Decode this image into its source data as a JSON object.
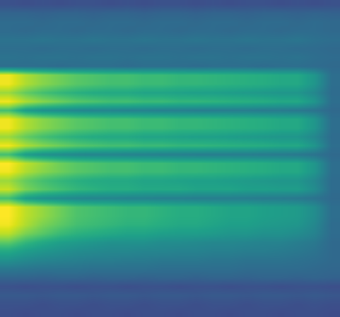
{
  "chart_data": {
    "type": "heatmap",
    "color": "Viridis",
    "tick_labels": false,
    "grid": false,
    "xlim": [
      -0.5,
      19.5
    ],
    "ylim": [
      35.5,
      -0.5
    ],
    "zlim": [
      0,
      1
    ],
    "cells": [
      [
        0.25,
        0.24,
        0.25,
        0.24,
        0.25,
        0.25,
        0.24,
        0.25,
        0.24,
        0.25,
        0.25,
        0.24,
        0.25,
        0.24,
        0.25,
        0.25,
        0.24,
        0.25,
        0.24,
        0.25
      ],
      [
        0.32,
        0.32,
        0.31,
        0.32,
        0.32,
        0.31,
        0.32,
        0.32,
        0.31,
        0.32,
        0.32,
        0.31,
        0.32,
        0.32,
        0.31,
        0.32,
        0.32,
        0.31,
        0.32,
        0.31
      ],
      [
        0.35,
        0.35,
        0.34,
        0.35,
        0.35,
        0.34,
        0.35,
        0.35,
        0.34,
        0.35,
        0.35,
        0.34,
        0.35,
        0.35,
        0.34,
        0.35,
        0.35,
        0.34,
        0.35,
        0.34
      ],
      [
        0.35,
        0.34,
        0.35,
        0.35,
        0.34,
        0.35,
        0.35,
        0.34,
        0.35,
        0.35,
        0.34,
        0.35,
        0.35,
        0.34,
        0.35,
        0.35,
        0.34,
        0.35,
        0.35,
        0.34
      ],
      [
        0.38,
        0.38,
        0.39,
        0.38,
        0.38,
        0.39,
        0.38,
        0.38,
        0.39,
        0.38,
        0.38,
        0.39,
        0.38,
        0.38,
        0.39,
        0.38,
        0.38,
        0.39,
        0.37,
        0.36
      ],
      [
        0.36,
        0.36,
        0.35,
        0.36,
        0.36,
        0.35,
        0.36,
        0.36,
        0.35,
        0.36,
        0.36,
        0.35,
        0.36,
        0.36,
        0.35,
        0.36,
        0.36,
        0.35,
        0.35,
        0.34
      ],
      [
        0.38,
        0.37,
        0.38,
        0.38,
        0.37,
        0.38,
        0.38,
        0.37,
        0.38,
        0.38,
        0.37,
        0.38,
        0.38,
        0.37,
        0.38,
        0.38,
        0.37,
        0.38,
        0.36,
        0.35
      ],
      [
        0.36,
        0.36,
        0.36,
        0.35,
        0.36,
        0.36,
        0.36,
        0.35,
        0.36,
        0.36,
        0.36,
        0.35,
        0.36,
        0.36,
        0.36,
        0.35,
        0.36,
        0.36,
        0.35,
        0.34
      ],
      [
        0.98,
        0.88,
        0.82,
        0.78,
        0.74,
        0.72,
        0.7,
        0.7,
        0.68,
        0.68,
        0.66,
        0.66,
        0.65,
        0.64,
        0.63,
        0.62,
        0.6,
        0.6,
        0.52,
        0.36
      ],
      [
        0.98,
        0.88,
        0.82,
        0.78,
        0.74,
        0.72,
        0.7,
        0.7,
        0.68,
        0.68,
        0.66,
        0.66,
        0.65,
        0.64,
        0.63,
        0.62,
        0.6,
        0.6,
        0.52,
        0.36
      ],
      [
        0.85,
        0.76,
        0.7,
        0.66,
        0.63,
        0.61,
        0.6,
        0.6,
        0.58,
        0.58,
        0.57,
        0.56,
        0.56,
        0.55,
        0.54,
        0.53,
        0.52,
        0.52,
        0.46,
        0.35
      ],
      [
        0.98,
        0.88,
        0.82,
        0.78,
        0.74,
        0.72,
        0.7,
        0.7,
        0.68,
        0.68,
        0.66,
        0.66,
        0.65,
        0.64,
        0.63,
        0.62,
        0.6,
        0.6,
        0.52,
        0.36
      ],
      [
        0.7,
        0.55,
        0.5,
        0.48,
        0.46,
        0.45,
        0.45,
        0.44,
        0.44,
        0.43,
        0.43,
        0.42,
        0.42,
        0.42,
        0.42,
        0.41,
        0.41,
        0.4,
        0.38,
        0.34
      ],
      [
        0.98,
        0.88,
        0.82,
        0.78,
        0.74,
        0.72,
        0.7,
        0.7,
        0.68,
        0.68,
        0.66,
        0.66,
        0.65,
        0.64,
        0.63,
        0.62,
        0.6,
        0.6,
        0.52,
        0.36
      ],
      [
        0.98,
        0.88,
        0.82,
        0.78,
        0.74,
        0.72,
        0.7,
        0.7,
        0.68,
        0.68,
        0.66,
        0.66,
        0.65,
        0.64,
        0.63,
        0.62,
        0.6,
        0.6,
        0.52,
        0.36
      ],
      [
        0.85,
        0.76,
        0.7,
        0.66,
        0.63,
        0.61,
        0.6,
        0.6,
        0.58,
        0.58,
        0.57,
        0.56,
        0.56,
        0.55,
        0.54,
        0.53,
        0.52,
        0.52,
        0.46,
        0.35
      ],
      [
        0.98,
        0.88,
        0.82,
        0.78,
        0.74,
        0.72,
        0.7,
        0.7,
        0.68,
        0.68,
        0.66,
        0.66,
        0.65,
        0.64,
        0.63,
        0.62,
        0.6,
        0.6,
        0.52,
        0.36
      ],
      [
        0.7,
        0.55,
        0.5,
        0.48,
        0.46,
        0.45,
        0.45,
        0.44,
        0.44,
        0.43,
        0.43,
        0.42,
        0.42,
        0.42,
        0.42,
        0.41,
        0.41,
        0.4,
        0.38,
        0.34
      ],
      [
        1.0,
        0.9,
        0.84,
        0.78,
        0.74,
        0.72,
        0.7,
        0.7,
        0.68,
        0.68,
        0.66,
        0.66,
        0.65,
        0.64,
        0.63,
        0.62,
        0.6,
        0.6,
        0.52,
        0.36
      ],
      [
        0.98,
        0.88,
        0.82,
        0.78,
        0.74,
        0.72,
        0.7,
        0.7,
        0.68,
        0.68,
        0.66,
        0.66,
        0.65,
        0.64,
        0.63,
        0.62,
        0.6,
        0.6,
        0.52,
        0.36
      ],
      [
        0.85,
        0.76,
        0.7,
        0.66,
        0.63,
        0.61,
        0.6,
        0.6,
        0.58,
        0.58,
        0.57,
        0.56,
        0.56,
        0.55,
        0.54,
        0.53,
        0.52,
        0.52,
        0.46,
        0.35
      ],
      [
        0.92,
        0.8,
        0.74,
        0.7,
        0.66,
        0.64,
        0.62,
        0.62,
        0.6,
        0.6,
        0.6,
        0.58,
        0.58,
        0.58,
        0.56,
        0.56,
        0.55,
        0.55,
        0.48,
        0.35
      ],
      [
        0.7,
        0.55,
        0.5,
        0.48,
        0.46,
        0.45,
        0.45,
        0.44,
        0.44,
        0.43,
        0.43,
        0.42,
        0.42,
        0.42,
        0.42,
        0.41,
        0.41,
        0.4,
        0.38,
        0.34
      ],
      [
        1.0,
        0.9,
        0.84,
        0.78,
        0.72,
        0.7,
        0.68,
        0.66,
        0.66,
        0.64,
        0.62,
        0.62,
        0.6,
        0.58,
        0.58,
        0.56,
        0.55,
        0.54,
        0.48,
        0.36
      ],
      [
        1.0,
        0.9,
        0.84,
        0.78,
        0.72,
        0.7,
        0.68,
        0.66,
        0.66,
        0.64,
        0.62,
        0.62,
        0.6,
        0.58,
        0.58,
        0.56,
        0.55,
        0.54,
        0.48,
        0.36
      ],
      [
        0.98,
        0.88,
        0.8,
        0.75,
        0.7,
        0.68,
        0.66,
        0.64,
        0.64,
        0.62,
        0.6,
        0.6,
        0.58,
        0.56,
        0.56,
        0.54,
        0.53,
        0.52,
        0.46,
        0.35
      ],
      [
        0.9,
        0.8,
        0.74,
        0.68,
        0.64,
        0.62,
        0.6,
        0.58,
        0.58,
        0.56,
        0.55,
        0.55,
        0.54,
        0.52,
        0.52,
        0.5,
        0.5,
        0.48,
        0.44,
        0.35
      ],
      [
        0.75,
        0.66,
        0.6,
        0.56,
        0.54,
        0.52,
        0.5,
        0.5,
        0.5,
        0.48,
        0.48,
        0.47,
        0.46,
        0.46,
        0.45,
        0.44,
        0.44,
        0.42,
        0.4,
        0.34
      ],
      [
        0.6,
        0.55,
        0.52,
        0.5,
        0.48,
        0.47,
        0.46,
        0.46,
        0.45,
        0.45,
        0.44,
        0.44,
        0.43,
        0.43,
        0.42,
        0.42,
        0.41,
        0.4,
        0.38,
        0.34
      ],
      [
        0.5,
        0.47,
        0.45,
        0.44,
        0.43,
        0.42,
        0.42,
        0.41,
        0.41,
        0.4,
        0.4,
        0.4,
        0.39,
        0.39,
        0.38,
        0.38,
        0.38,
        0.37,
        0.36,
        0.34
      ],
      [
        0.4,
        0.39,
        0.38,
        0.38,
        0.38,
        0.37,
        0.37,
        0.37,
        0.37,
        0.36,
        0.36,
        0.36,
        0.36,
        0.36,
        0.35,
        0.35,
        0.35,
        0.35,
        0.34,
        0.33
      ],
      [
        0.32,
        0.32,
        0.31,
        0.32,
        0.32,
        0.31,
        0.32,
        0.32,
        0.31,
        0.32,
        0.32,
        0.31,
        0.32,
        0.32,
        0.31,
        0.32,
        0.32,
        0.31,
        0.32,
        0.31
      ],
      [
        0.25,
        0.24,
        0.25,
        0.25,
        0.24,
        0.25,
        0.25,
        0.24,
        0.25,
        0.25,
        0.24,
        0.25,
        0.25,
        0.24,
        0.25,
        0.25,
        0.24,
        0.25,
        0.25,
        0.24
      ],
      [
        0.28,
        0.28,
        0.27,
        0.28,
        0.28,
        0.27,
        0.28,
        0.28,
        0.27,
        0.28,
        0.28,
        0.27,
        0.28,
        0.28,
        0.27,
        0.28,
        0.28,
        0.27,
        0.28,
        0.27
      ],
      [
        0.25,
        0.25,
        0.24,
        0.25,
        0.25,
        0.24,
        0.25,
        0.25,
        0.24,
        0.25,
        0.25,
        0.24,
        0.25,
        0.25,
        0.24,
        0.25,
        0.25,
        0.24,
        0.25,
        0.24
      ],
      [
        0.24,
        0.23,
        0.24,
        0.24,
        0.23,
        0.24,
        0.24,
        0.23,
        0.24,
        0.24,
        0.23,
        0.24,
        0.24,
        0.23,
        0.24,
        0.24,
        0.23,
        0.24,
        0.24,
        0.23
      ]
    ]
  }
}
